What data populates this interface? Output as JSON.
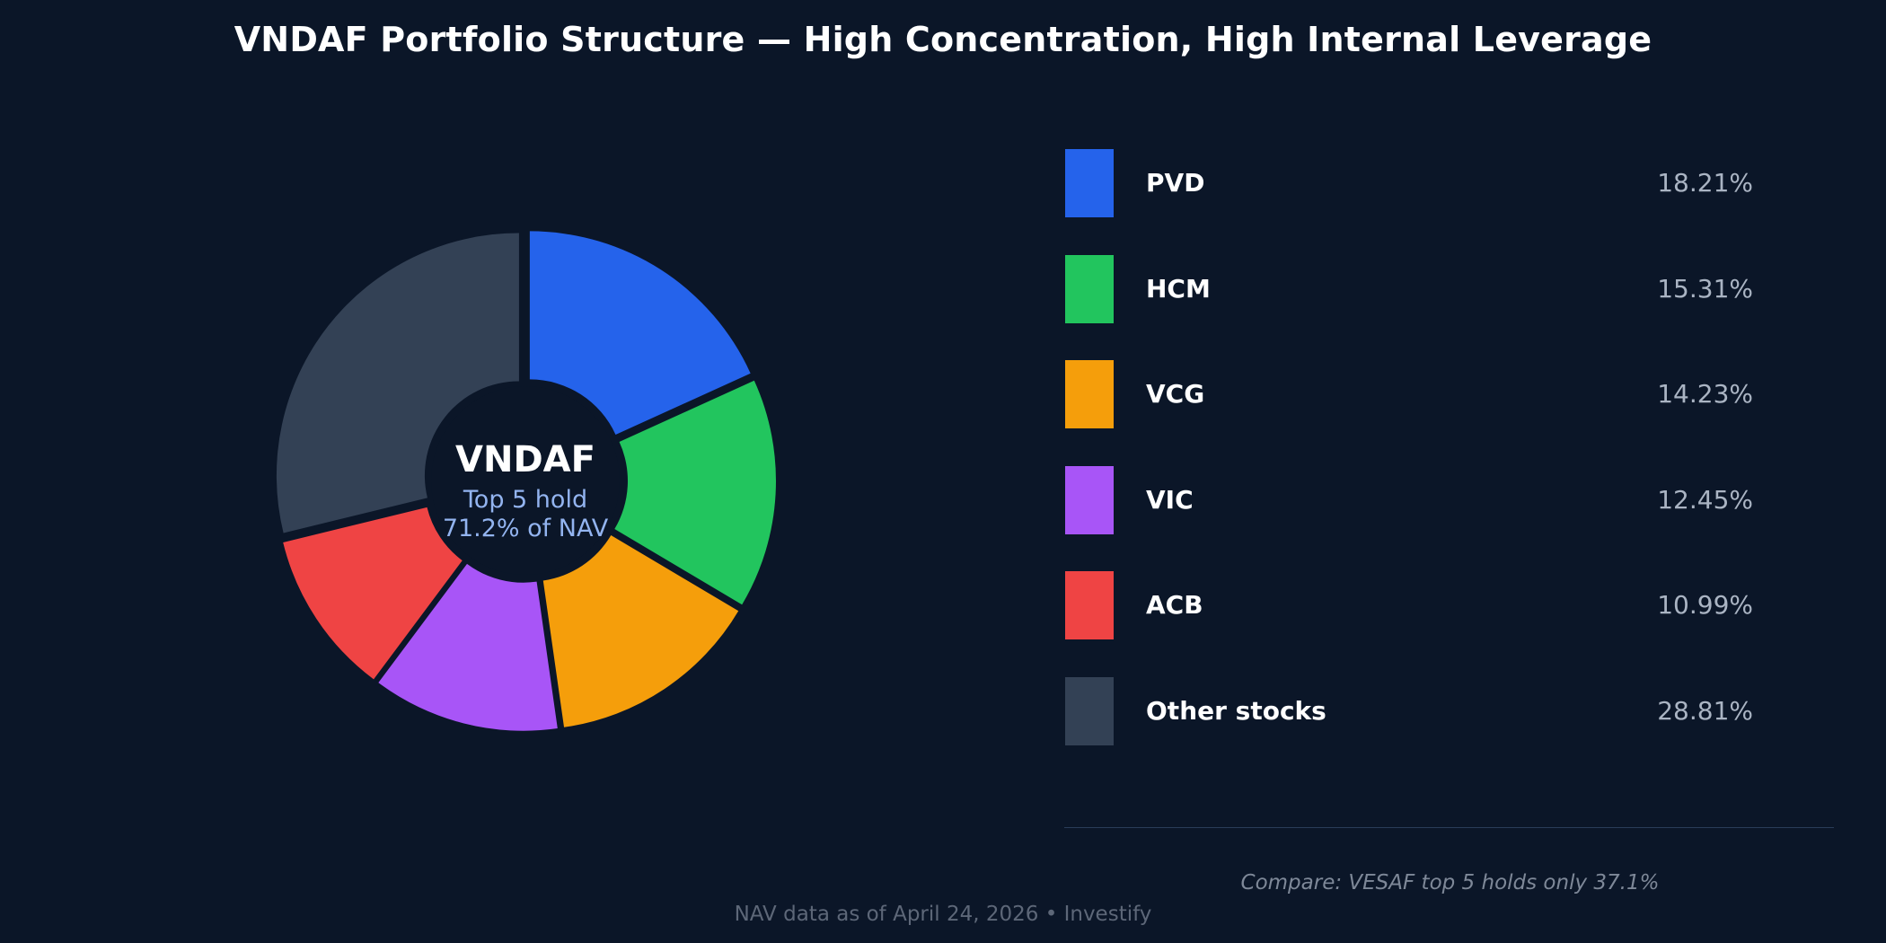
{
  "title": "VNDAF Portfolio Structure — High Concentration, High Internal Leverage",
  "center": {
    "name": "VNDAF",
    "line1": "Top 5 hold",
    "line2": "71.2% of NAV"
  },
  "chart_data": {
    "type": "pie",
    "title": "VNDAF Portfolio Structure — High Concentration, High Internal Leverage",
    "donut": true,
    "slices": [
      {
        "label": "PVD",
        "value": 18.21,
        "value_label": "18.21%",
        "color": "#2563eb"
      },
      {
        "label": "HCM",
        "value": 15.31,
        "value_label": "15.31%",
        "color": "#22c55e"
      },
      {
        "label": "VCG",
        "value": 14.23,
        "value_label": "14.23%",
        "color": "#f59e0b"
      },
      {
        "label": "VIC",
        "value": 12.45,
        "value_label": "12.45%",
        "color": "#a855f7"
      },
      {
        "label": "ACB",
        "value": 10.99,
        "value_label": "10.99%",
        "color": "#ef4444"
      },
      {
        "label": "Other stocks",
        "value": 28.81,
        "value_label": "28.81%",
        "color": "#334155"
      }
    ],
    "legend_position": "right"
  },
  "compare_note": "Compare: VESAF top 5 holds only 37.1%",
  "footer": "NAV data as of April 24, 2026  •  Investify",
  "colors": {
    "background": "#0b1628",
    "center_hole": "#0b1628",
    "center_subtext": "#93b4f0"
  }
}
